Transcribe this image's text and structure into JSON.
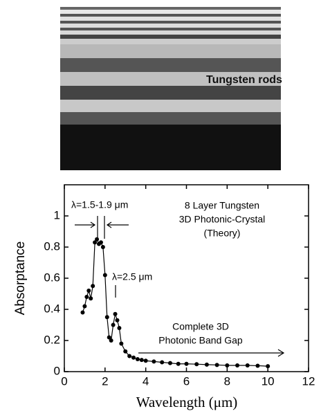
{
  "image": {
    "label": "Tungsten rods"
  },
  "chart_data": {
    "type": "line",
    "xlabel": "Wavelength (μm)",
    "ylabel": "Absorptance",
    "annotations": [
      "λ=1.5-1.9 μm",
      "8 Layer Tungsten",
      "3D Photonic-Crystal",
      "(Theory)",
      "λ=2.5 μm",
      "Complete 3D",
      "Photonic Band Gap"
    ],
    "x": [
      0.9,
      1.0,
      1.1,
      1.2,
      1.3,
      1.4,
      1.5,
      1.6,
      1.7,
      1.8,
      1.9,
      2.0,
      2.1,
      2.2,
      2.3,
      2.4,
      2.5,
      2.6,
      2.7,
      2.8,
      3.0,
      3.2,
      3.4,
      3.6,
      3.8,
      4.0,
      4.4,
      4.8,
      5.2,
      5.6,
      6.0,
      6.5,
      7.0,
      7.5,
      8.0,
      8.5,
      9.0,
      9.5,
      10.0
    ],
    "series": [
      {
        "color": "#000000",
        "values": [
          0.38,
          0.42,
          0.48,
          0.52,
          0.47,
          0.55,
          0.83,
          0.85,
          0.82,
          0.83,
          0.8,
          0.62,
          0.35,
          0.22,
          0.2,
          0.3,
          0.37,
          0.33,
          0.28,
          0.18,
          0.13,
          0.1,
          0.09,
          0.08,
          0.075,
          0.07,
          0.065,
          0.06,
          0.055,
          0.05,
          0.05,
          0.048,
          0.045,
          0.043,
          0.04,
          0.04,
          0.04,
          0.038,
          0.035
        ]
      }
    ],
    "xlim": [
      0,
      12
    ],
    "xticks": [
      0,
      2,
      4,
      6,
      8,
      10,
      12
    ],
    "ylim": [
      0,
      1.2
    ],
    "yticks": [
      0,
      0.2,
      0.4,
      0.6,
      0.8,
      1
    ]
  }
}
